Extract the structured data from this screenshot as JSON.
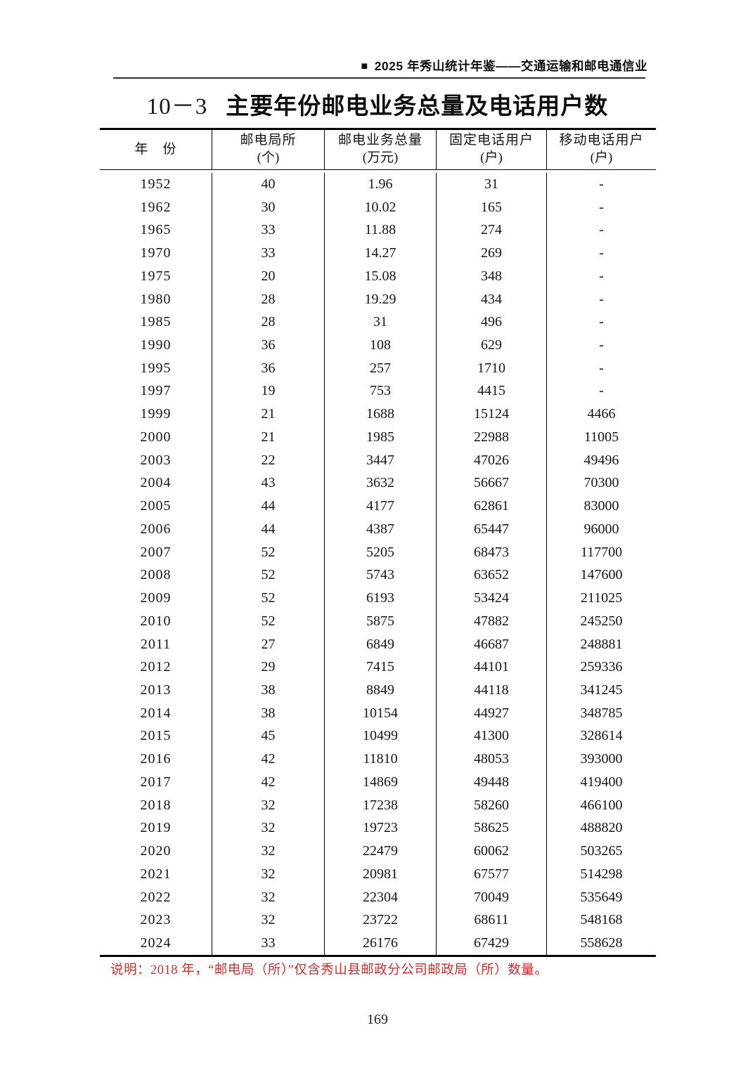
{
  "header": {
    "marker": "■",
    "text": "2025 年秀山统计年鉴——交通运输和邮电通信业"
  },
  "title": {
    "number": "10－3",
    "text": "主要年份邮电业务总量及电话用户数"
  },
  "table": {
    "columns": [
      {
        "line1": "年　份",
        "line2": ""
      },
      {
        "line1": "邮电局所",
        "line2": "(个)"
      },
      {
        "line1": "邮电业务总量",
        "line2": "(万元)"
      },
      {
        "line1": "固定电话用户",
        "line2": "(户)"
      },
      {
        "line1": "移动电话用户",
        "line2": "(户)"
      }
    ],
    "rows": [
      [
        "1952",
        "40",
        "1.96",
        "31",
        "-"
      ],
      [
        "1962",
        "30",
        "10.02",
        "165",
        "-"
      ],
      [
        "1965",
        "33",
        "11.88",
        "274",
        "-"
      ],
      [
        "1970",
        "33",
        "14.27",
        "269",
        "-"
      ],
      [
        "1975",
        "20",
        "15.08",
        "348",
        "-"
      ],
      [
        "1980",
        "28",
        "19.29",
        "434",
        "-"
      ],
      [
        "1985",
        "28",
        "31",
        "496",
        "-"
      ],
      [
        "1990",
        "36",
        "108",
        "629",
        "-"
      ],
      [
        "1995",
        "36",
        "257",
        "1710",
        "-"
      ],
      [
        "1997",
        "19",
        "753",
        "4415",
        "-"
      ],
      [
        "1999",
        "21",
        "1688",
        "15124",
        "4466"
      ],
      [
        "2000",
        "21",
        "1985",
        "22988",
        "11005"
      ],
      [
        "2003",
        "22",
        "3447",
        "47026",
        "49496"
      ],
      [
        "2004",
        "43",
        "3632",
        "56667",
        "70300"
      ],
      [
        "2005",
        "44",
        "4177",
        "62861",
        "83000"
      ],
      [
        "2006",
        "44",
        "4387",
        "65447",
        "96000"
      ],
      [
        "2007",
        "52",
        "5205",
        "68473",
        "117700"
      ],
      [
        "2008",
        "52",
        "5743",
        "63652",
        "147600"
      ],
      [
        "2009",
        "52",
        "6193",
        "53424",
        "211025"
      ],
      [
        "2010",
        "52",
        "5875",
        "47882",
        "245250"
      ],
      [
        "2011",
        "27",
        "6849",
        "46687",
        "248881"
      ],
      [
        "2012",
        "29",
        "7415",
        "44101",
        "259336"
      ],
      [
        "2013",
        "38",
        "8849",
        "44118",
        "341245"
      ],
      [
        "2014",
        "38",
        "10154",
        "44927",
        "348785"
      ],
      [
        "2015",
        "45",
        "10499",
        "41300",
        "328614"
      ],
      [
        "2016",
        "42",
        "11810",
        "48053",
        "393000"
      ],
      [
        "2017",
        "42",
        "14869",
        "49448",
        "419400"
      ],
      [
        "2018",
        "32",
        "17238",
        "58260",
        "466100"
      ],
      [
        "2019",
        "32",
        "19723",
        "58625",
        "488820"
      ],
      [
        "2020",
        "32",
        "22479",
        "60062",
        "503265"
      ],
      [
        "2021",
        "32",
        "20981",
        "67577",
        "514298"
      ],
      [
        "2022",
        "32",
        "22304",
        "70049",
        "535649"
      ],
      [
        "2023",
        "32",
        "23722",
        "68611",
        "548168"
      ],
      [
        "2024",
        "33",
        "26176",
        "67429",
        "558628"
      ]
    ]
  },
  "note": "说明：2018 年，“邮电局（所）”仅含秀山县邮政分公司邮政局（所）数量。",
  "page_number": "169",
  "colors": {
    "note_red": "#cc2d2d",
    "text_black": "#161616"
  }
}
